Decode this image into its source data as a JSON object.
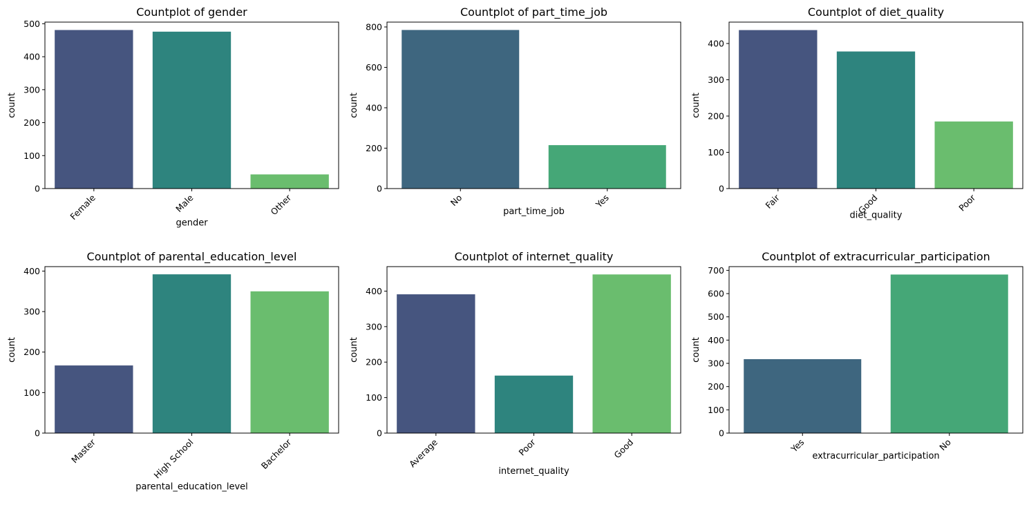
{
  "chart_data": [
    {
      "type": "bar",
      "title": "Countplot of gender",
      "xlabel": "gender",
      "ylabel": "count",
      "categories": [
        "Female",
        "Male",
        "Other"
      ],
      "values": [
        481,
        476,
        43
      ],
      "ylim": [
        0,
        505
      ],
      "yticks": [
        "0",
        "100",
        "200",
        "300",
        "400",
        "500"
      ],
      "colors": [
        "#46557F",
        "#2E847E",
        "#6ABD6E"
      ],
      "grid": false
    },
    {
      "type": "bar",
      "title": "Countplot of part_time_job",
      "xlabel": "part_time_job",
      "ylabel": "count",
      "categories": [
        "No",
        "Yes"
      ],
      "values": [
        785,
        215
      ],
      "ylim": [
        0,
        824
      ],
      "yticks": [
        "0",
        "200",
        "400",
        "600",
        "800"
      ],
      "colors": [
        "#3E667F",
        "#45A777"
      ],
      "grid": false
    },
    {
      "type": "bar",
      "title": "Countplot of diet_quality",
      "xlabel": "diet_quality",
      "ylabel": "count",
      "categories": [
        "Fair",
        "Good",
        "Poor"
      ],
      "values": [
        437,
        378,
        185
      ],
      "ylim": [
        0,
        459
      ],
      "yticks": [
        "0",
        "100",
        "200",
        "300",
        "400"
      ],
      "colors": [
        "#46557F",
        "#2E847E",
        "#6ABD6E"
      ],
      "grid": false
    },
    {
      "type": "bar",
      "title": "Countplot of parental_education_level",
      "xlabel": "parental_education_level",
      "ylabel": "count",
      "categories": [
        "Master",
        "High School",
        "Bachelor"
      ],
      "values": [
        167,
        392,
        350
      ],
      "ylim": [
        0,
        411
      ],
      "yticks": [
        "0",
        "100",
        "200",
        "300",
        "400"
      ],
      "colors": [
        "#46557F",
        "#2E847E",
        "#6ABD6E"
      ],
      "grid": false
    },
    {
      "type": "bar",
      "title": "Countplot of internet_quality",
      "xlabel": "internet_quality",
      "ylabel": "count",
      "categories": [
        "Average",
        "Poor",
        "Good"
      ],
      "values": [
        391,
        162,
        447
      ],
      "ylim": [
        0,
        469
      ],
      "yticks": [
        "0",
        "100",
        "200",
        "300",
        "400"
      ],
      "colors": [
        "#46557F",
        "#2E847E",
        "#6ABD6E"
      ],
      "grid": false
    },
    {
      "type": "bar",
      "title": "Countplot of extracurricular_participation",
      "xlabel": "extracurricular_participation",
      "ylabel": "count",
      "categories": [
        "Yes",
        "No"
      ],
      "values": [
        318,
        682
      ],
      "ylim": [
        0,
        716
      ],
      "yticks": [
        "0",
        "100",
        "200",
        "300",
        "400",
        "500",
        "600",
        "700"
      ],
      "colors": [
        "#3E667F",
        "#45A777"
      ],
      "grid": false
    }
  ]
}
